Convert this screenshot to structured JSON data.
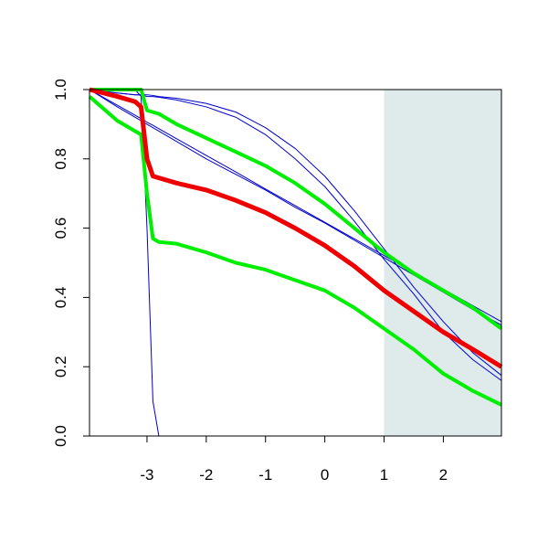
{
  "chart_data": {
    "type": "line",
    "x": [
      -3.97,
      -3.5,
      -3.2,
      -3.1,
      -3.0,
      -2.9,
      -2.8,
      -2.5,
      -2,
      -1.5,
      -1,
      -0.5,
      0,
      0.5,
      1,
      1.5,
      2,
      2.5,
      2.98
    ],
    "series": [
      {
        "color": "#0000cc",
        "width": 1,
        "values": [
          1,
          1,
          1,
          0.98,
          0.6,
          0.1,
          0.0,
          null,
          null,
          null,
          null,
          null,
          null,
          null,
          null,
          null,
          null,
          null,
          null
        ]
      },
      {
        "color": "#0000cc",
        "width": 1,
        "values": [
          1,
          0.99,
          0.985,
          0.985,
          0.98,
          0.98,
          0.978,
          0.97,
          0.95,
          0.92,
          0.87,
          0.8,
          0.72,
          0.62,
          0.51,
          0.41,
          0.3,
          0.22,
          0.16
        ]
      },
      {
        "color": "#0000cc",
        "width": 1,
        "values": [
          1,
          0.99,
          0.985,
          0.985,
          0.985,
          0.983,
          0.98,
          0.975,
          0.96,
          0.935,
          0.89,
          0.83,
          0.75,
          0.65,
          0.54,
          0.43,
          0.33,
          0.24,
          0.175
        ]
      },
      {
        "color": "#0000cc",
        "width": 1,
        "values": [
          1,
          0.955,
          0.926,
          0.916,
          0.906,
          0.897,
          0.887,
          0.858,
          0.81,
          0.762,
          0.713,
          0.665,
          0.617,
          0.569,
          0.521,
          0.473,
          0.424,
          0.376,
          0.33
        ]
      },
      {
        "color": "#0000cc",
        "width": 1,
        "values": [
          1,
          0.95,
          0.92,
          0.91,
          0.9,
          0.89,
          0.88,
          0.85,
          0.8,
          0.755,
          0.71,
          0.66,
          0.615,
          0.565,
          0.515,
          0.465,
          0.415,
          0.365,
          0.32
        ]
      },
      {
        "color": "#00ee00",
        "width": 4,
        "values": [
          1,
          1,
          1,
          1,
          0.94,
          0.935,
          0.93,
          0.9,
          0.86,
          0.82,
          0.78,
          0.73,
          0.67,
          0.6,
          0.53,
          0.47,
          0.42,
          0.37,
          0.31
        ]
      },
      {
        "color": "#00ee00",
        "width": 4,
        "values": [
          0.98,
          0.91,
          0.88,
          0.87,
          0.7,
          0.57,
          0.56,
          0.555,
          0.53,
          0.5,
          0.48,
          0.45,
          0.42,
          0.37,
          0.31,
          0.25,
          0.18,
          0.13,
          0.09
        ]
      },
      {
        "color": "#ee0000",
        "width": 5,
        "values": [
          1,
          0.98,
          0.965,
          0.95,
          0.8,
          0.75,
          0.745,
          0.73,
          0.71,
          0.68,
          0.645,
          0.6,
          0.55,
          0.49,
          0.42,
          0.36,
          0.3,
          0.25,
          0.2
        ]
      }
    ],
    "shaded_region": {
      "x": [
        1,
        2.98
      ],
      "color": "#deebea"
    },
    "xlim": [
      -3.97,
      2.98
    ],
    "ylim": [
      0,
      1
    ],
    "xticks": [
      -3,
      -2,
      -1,
      0,
      1,
      2
    ],
    "yticks": [
      {
        "value": 0,
        "label": "0.0"
      },
      0.2,
      0.4,
      0.6,
      0.8,
      {
        "value": 1,
        "label": "1.0"
      }
    ]
  }
}
